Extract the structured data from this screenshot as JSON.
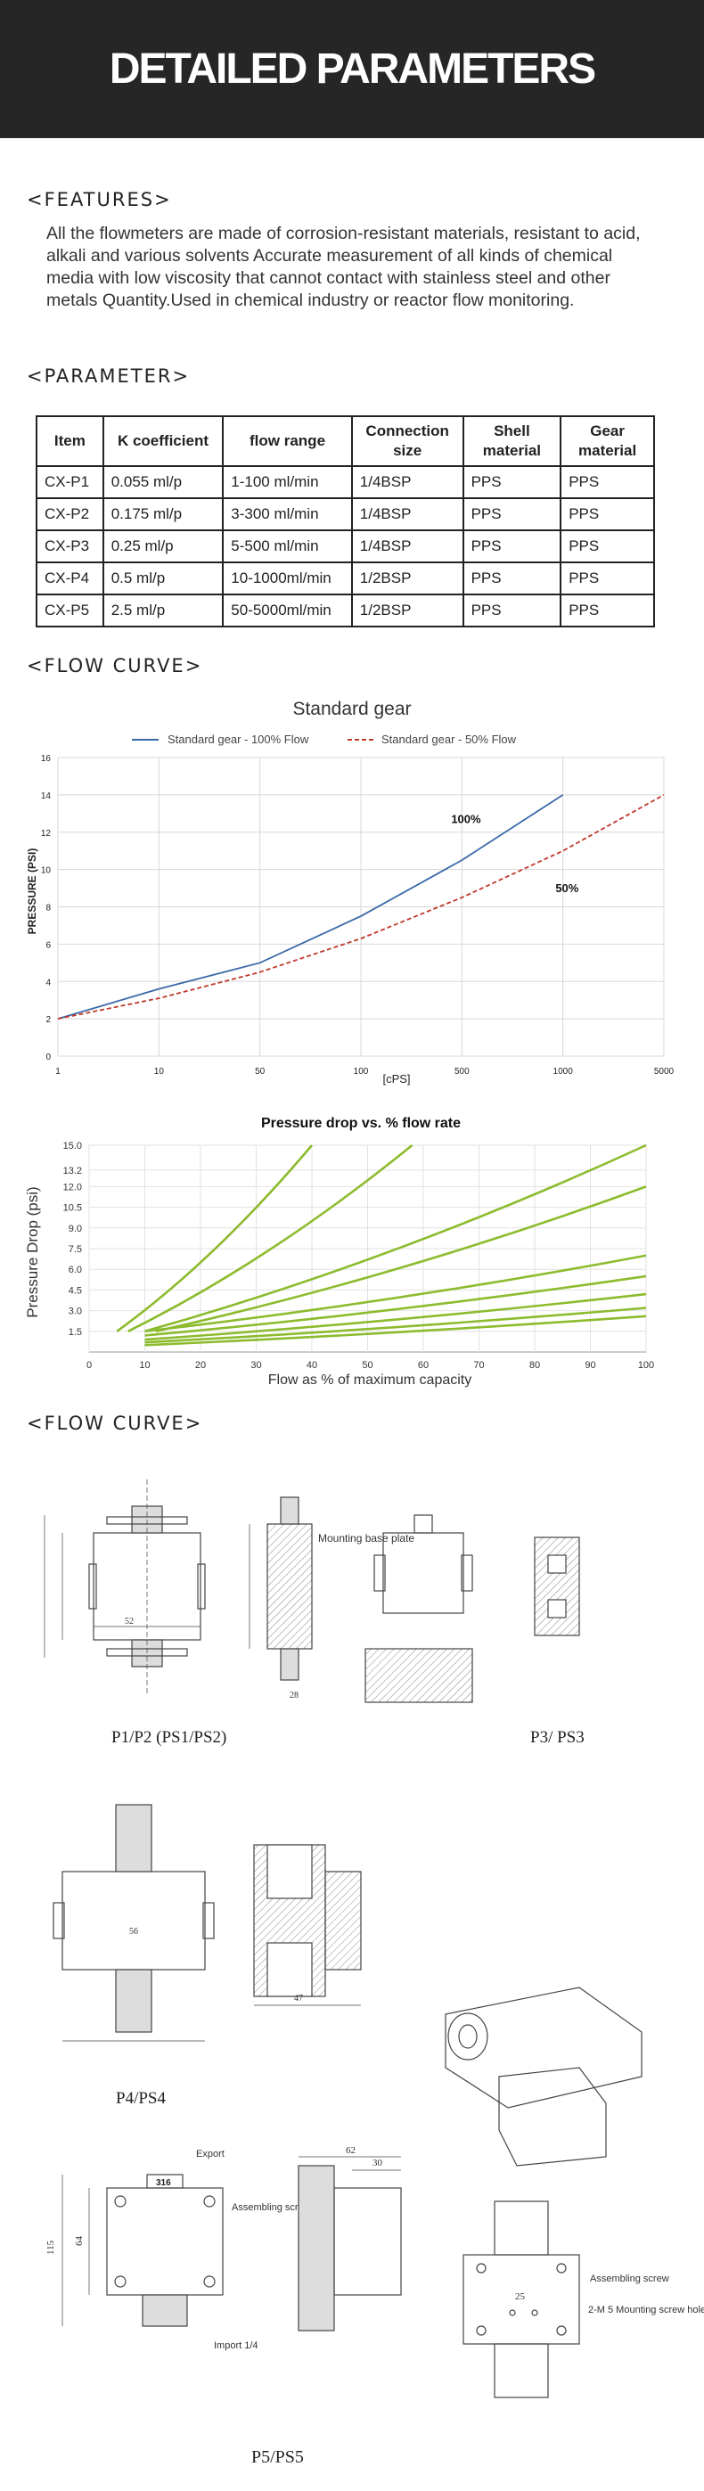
{
  "banner": {
    "title": "DETAILED PARAMETERS"
  },
  "sections": {
    "features": "<FEATURES>",
    "parameter": "<PARAMETER>",
    "flow_curve_1": "<FLOW CURVE>",
    "flow_curve_2": "<FLOW CURVE>"
  },
  "features_text": "All the flowmeters are made of corrosion-resistant materials, resistant to acid, alkali and various solvents Accurate measurement of all kinds of chemical media with low viscosity that cannot contact with stainless steel and other metals Quantity.Used in chemical industry or reactor flow monitoring.",
  "table": {
    "headers": [
      "Item",
      "K coefficient",
      "flow range",
      "Connection size",
      "Shell material",
      "Gear material"
    ],
    "rows": [
      [
        "CX-P1",
        "0.055 ml/p",
        "1-100 ml/min",
        "1/4BSP",
        "PPS",
        "PPS"
      ],
      [
        "CX-P2",
        "0.175 ml/p",
        "3-300 ml/min",
        "1/4BSP",
        "PPS",
        "PPS"
      ],
      [
        "CX-P3",
        "0.25 ml/p",
        "5-500 ml/min",
        "1/4BSP",
        "PPS",
        "PPS"
      ],
      [
        "CX-P4",
        "0.5 ml/p",
        "10-1000ml/min",
        "1/2BSP",
        "PPS",
        "PPS"
      ],
      [
        "CX-P5",
        "2.5 ml/p",
        "50-5000ml/min",
        "1/2BSP",
        "PPS",
        "PPS"
      ]
    ]
  },
  "chart_data": [
    {
      "type": "line",
      "title": "Standard gear",
      "xlabel": "[cPS]",
      "ylabel": "PRESSURE (PSI)",
      "x": [
        1,
        10,
        50,
        100,
        500,
        1000,
        5000
      ],
      "x_ticks": [
        "1",
        "10",
        "50",
        "100",
        "500",
        "1000",
        "5000"
      ],
      "y_ticks": [
        "0",
        "2",
        "4",
        "6",
        "8",
        "10",
        "12",
        "14",
        "16"
      ],
      "ylim": [
        0,
        16
      ],
      "grid": true,
      "legend": "top",
      "series": [
        {
          "name": "Standard gear - 100% Flow",
          "label": "100%",
          "color": "#3a6aa8",
          "style": "solid",
          "values": [
            2,
            3.6,
            5,
            7.5,
            10.5,
            14,
            null
          ]
        },
        {
          "name": "Standard gear - 50% Flow",
          "label": "50%",
          "color": "#c0392b",
          "style": "dashed",
          "values": [
            2,
            3.1,
            4.5,
            6.3,
            8.5,
            11,
            14
          ]
        }
      ]
    },
    {
      "type": "line",
      "title": "Pressure drop vs. % flow rate",
      "xlabel": "Flow as % of maximum capacity",
      "ylabel": "Pressure Drop (psi)",
      "x_ticks": [
        "0",
        "10",
        "20",
        "30",
        "40",
        "50",
        "60",
        "70",
        "80",
        "90",
        "100"
      ],
      "y_ticks": [
        "1.5",
        "3.0",
        "4.5",
        "6.0",
        "7.5",
        "9.0",
        "10.5",
        "12.0",
        "13.2",
        "15.0"
      ],
      "xlim": [
        0,
        100
      ],
      "ylim": [
        0,
        15
      ],
      "grid": true,
      "color": "#8dbb2e",
      "series": [
        {
          "x": [
            5,
            40
          ],
          "y": [
            1.5,
            15
          ]
        },
        {
          "x": [
            7,
            58
          ],
          "y": [
            1.5,
            15
          ]
        },
        {
          "x": [
            10,
            100
          ],
          "y": [
            1.5,
            15
          ]
        },
        {
          "x": [
            12,
            100
          ],
          "y": [
            1.5,
            12
          ]
        },
        {
          "x": [
            10,
            100
          ],
          "y": [
            1.5,
            7
          ]
        },
        {
          "x": [
            10,
            100
          ],
          "y": [
            1.2,
            5.5
          ]
        },
        {
          "x": [
            10,
            100
          ],
          "y": [
            0.9,
            4.2
          ]
        },
        {
          "x": [
            10,
            100
          ],
          "y": [
            0.7,
            3.2
          ]
        },
        {
          "x": [
            10,
            100
          ],
          "y": [
            0.5,
            2.6
          ]
        }
      ]
    }
  ],
  "drawings": {
    "labels": {
      "p1p2": "P1/P2 (PS1/PS2)",
      "p3": "P3/ PS3",
      "p4": "P4/PS4",
      "p5": "P5/PS5"
    },
    "annotations": {
      "mounting_base": "Mounting base plate",
      "export": "Export",
      "code": "316",
      "assembling_screw": "Assembling screw",
      "import": "Import 1/4",
      "assembling_screw_2": "Assembling screw",
      "mounting_screw_hole": "2-M 5 Mounting screw hole"
    },
    "dims": {
      "d52": "52",
      "d62": "62",
      "d30": "30",
      "d64": "64",
      "d115": "115",
      "d25": "25",
      "d28": "28",
      "d56": "56",
      "d47": "47"
    }
  }
}
